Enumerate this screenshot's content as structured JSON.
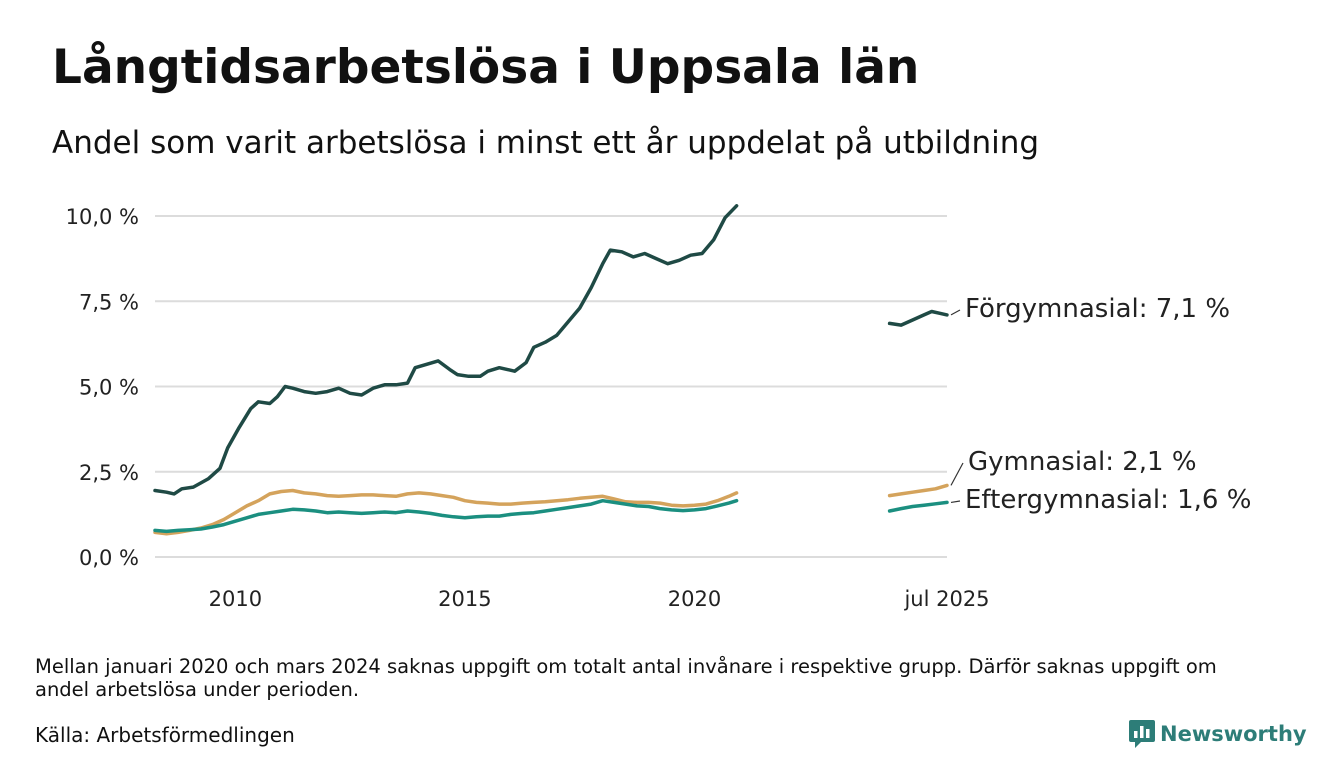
{
  "header": {
    "title": "Långtidsarbetslösa i Uppsala län",
    "subtitle": "Andel som varit arbetslösa i minst ett år uppdelat på utbildning"
  },
  "footer": {
    "note": "Mellan januari 2020 och mars 2024 saknas uppgift om totalt antal invånare i respektive grupp. Därför saknas uppgift om andel arbetslösa under perioden.",
    "source": "Källa: Arbetsförmedlingen",
    "brand": "Newsworthy",
    "brand_icon": "newsworthy-logo-icon"
  },
  "chart_data": {
    "type": "line",
    "title": "",
    "xlabel": "",
    "ylabel": "",
    "xlim": [
      "2008-04",
      "2025-07"
    ],
    "ylim": [
      0,
      10
    ],
    "y_ticks": [
      0,
      2.5,
      5,
      7.5,
      10
    ],
    "y_tick_labels": [
      "0,0 %",
      "2,5 %",
      "5,0 %",
      "7,5 %",
      "10,0 %"
    ],
    "x_ticks": [
      "2010-01",
      "2015-01",
      "2020-01",
      "2025-07"
    ],
    "x_tick_labels": [
      "2010",
      "2015",
      "2020",
      "jul 2025"
    ],
    "grid": "horizontal",
    "legend": "direct labels at right end of lines",
    "series": [
      {
        "name": "Förgymnasial",
        "end_label": "Förgymnasial: 7,1 %",
        "color": "#1f4a45",
        "points": [
          [
            "2008-04",
            1.95
          ],
          [
            "2008-07",
            1.9
          ],
          [
            "2008-09",
            1.85
          ],
          [
            "2008-11",
            2.0
          ],
          [
            "2009-02",
            2.05
          ],
          [
            "2009-06",
            2.3
          ],
          [
            "2009-09",
            2.6
          ],
          [
            "2009-11",
            3.2
          ],
          [
            "2010-02",
            3.8
          ],
          [
            "2010-05",
            4.35
          ],
          [
            "2010-07",
            4.55
          ],
          [
            "2010-10",
            4.5
          ],
          [
            "2010-12",
            4.7
          ],
          [
            "2011-02",
            5.0
          ],
          [
            "2011-04",
            4.95
          ],
          [
            "2011-07",
            4.85
          ],
          [
            "2011-10",
            4.8
          ],
          [
            "2012-01",
            4.85
          ],
          [
            "2012-04",
            4.95
          ],
          [
            "2012-07",
            4.8
          ],
          [
            "2012-10",
            4.75
          ],
          [
            "2013-01",
            4.95
          ],
          [
            "2013-04",
            5.05
          ],
          [
            "2013-07",
            5.05
          ],
          [
            "2013-10",
            5.1
          ],
          [
            "2013-12",
            5.55
          ],
          [
            "2014-03",
            5.65
          ],
          [
            "2014-06",
            5.75
          ],
          [
            "2014-09",
            5.5
          ],
          [
            "2014-11",
            5.35
          ],
          [
            "2015-02",
            5.3
          ],
          [
            "2015-05",
            5.3
          ],
          [
            "2015-07",
            5.45
          ],
          [
            "2015-10",
            5.55
          ],
          [
            "2015-12",
            5.5
          ],
          [
            "2016-02",
            5.45
          ],
          [
            "2016-05",
            5.7
          ],
          [
            "2016-07",
            6.15
          ],
          [
            "2016-10",
            6.3
          ],
          [
            "2017-01",
            6.5
          ],
          [
            "2017-04",
            6.9
          ],
          [
            "2017-07",
            7.3
          ],
          [
            "2017-10",
            7.9
          ],
          [
            "2018-01",
            8.6
          ],
          [
            "2018-03",
            9.0
          ],
          [
            "2018-06",
            8.95
          ],
          [
            "2018-09",
            8.8
          ],
          [
            "2018-12",
            8.9
          ],
          [
            "2019-03",
            8.75
          ],
          [
            "2019-06",
            8.6
          ],
          [
            "2019-09",
            8.7
          ],
          [
            "2019-12",
            8.85
          ],
          [
            "2020-03",
            8.9
          ],
          [
            "2020-06",
            9.3
          ],
          [
            "2020-09",
            9.95
          ],
          [
            "2020-12",
            10.3
          ],
          null,
          [
            "2024-04",
            6.85
          ],
          [
            "2024-07",
            6.8
          ],
          [
            "2024-10",
            6.95
          ],
          [
            "2025-01",
            7.1
          ],
          [
            "2025-03",
            7.2
          ],
          [
            "2025-05",
            7.15
          ],
          [
            "2025-07",
            7.1
          ]
        ]
      },
      {
        "name": "Gymnasial",
        "end_label": "Gymnasial: 2,1 %",
        "color": "#d4a35c",
        "points": [
          [
            "2008-04",
            0.72
          ],
          [
            "2008-07",
            0.68
          ],
          [
            "2008-10",
            0.72
          ],
          [
            "2009-01",
            0.78
          ],
          [
            "2009-04",
            0.85
          ],
          [
            "2009-07",
            0.95
          ],
          [
            "2009-10",
            1.1
          ],
          [
            "2010-01",
            1.3
          ],
          [
            "2010-04",
            1.5
          ],
          [
            "2010-07",
            1.65
          ],
          [
            "2010-10",
            1.85
          ],
          [
            "2011-01",
            1.92
          ],
          [
            "2011-04",
            1.95
          ],
          [
            "2011-07",
            1.88
          ],
          [
            "2011-10",
            1.85
          ],
          [
            "2012-01",
            1.8
          ],
          [
            "2012-04",
            1.78
          ],
          [
            "2012-07",
            1.8
          ],
          [
            "2012-10",
            1.82
          ],
          [
            "2013-01",
            1.82
          ],
          [
            "2013-04",
            1.8
          ],
          [
            "2013-07",
            1.78
          ],
          [
            "2013-10",
            1.85
          ],
          [
            "2014-01",
            1.88
          ],
          [
            "2014-04",
            1.85
          ],
          [
            "2014-07",
            1.8
          ],
          [
            "2014-10",
            1.75
          ],
          [
            "2015-01",
            1.65
          ],
          [
            "2015-04",
            1.6
          ],
          [
            "2015-07",
            1.58
          ],
          [
            "2015-10",
            1.55
          ],
          [
            "2016-01",
            1.55
          ],
          [
            "2016-04",
            1.58
          ],
          [
            "2016-07",
            1.6
          ],
          [
            "2016-10",
            1.62
          ],
          [
            "2017-01",
            1.65
          ],
          [
            "2017-04",
            1.68
          ],
          [
            "2017-07",
            1.72
          ],
          [
            "2017-10",
            1.75
          ],
          [
            "2018-01",
            1.78
          ],
          [
            "2018-04",
            1.7
          ],
          [
            "2018-07",
            1.62
          ],
          [
            "2018-10",
            1.6
          ],
          [
            "2019-01",
            1.6
          ],
          [
            "2019-04",
            1.58
          ],
          [
            "2019-07",
            1.52
          ],
          [
            "2019-10",
            1.5
          ],
          [
            "2020-01",
            1.52
          ],
          [
            "2020-04",
            1.55
          ],
          [
            "2020-07",
            1.65
          ],
          [
            "2020-10",
            1.78
          ],
          [
            "2020-12",
            1.88
          ],
          null,
          [
            "2024-04",
            1.8
          ],
          [
            "2024-07",
            1.85
          ],
          [
            "2024-10",
            1.9
          ],
          [
            "2025-01",
            1.95
          ],
          [
            "2025-04",
            2.0
          ],
          [
            "2025-07",
            2.1
          ]
        ]
      },
      {
        "name": "Eftergymnasial",
        "end_label": "Eftergymnasial: 1,6 %",
        "color": "#1b8f80",
        "points": [
          [
            "2008-04",
            0.78
          ],
          [
            "2008-07",
            0.75
          ],
          [
            "2008-10",
            0.78
          ],
          [
            "2009-01",
            0.8
          ],
          [
            "2009-04",
            0.82
          ],
          [
            "2009-07",
            0.88
          ],
          [
            "2009-10",
            0.95
          ],
          [
            "2010-01",
            1.05
          ],
          [
            "2010-04",
            1.15
          ],
          [
            "2010-07",
            1.25
          ],
          [
            "2010-10",
            1.3
          ],
          [
            "2011-01",
            1.35
          ],
          [
            "2011-04",
            1.4
          ],
          [
            "2011-07",
            1.38
          ],
          [
            "2011-10",
            1.35
          ],
          [
            "2012-01",
            1.3
          ],
          [
            "2012-04",
            1.32
          ],
          [
            "2012-07",
            1.3
          ],
          [
            "2012-10",
            1.28
          ],
          [
            "2013-01",
            1.3
          ],
          [
            "2013-04",
            1.32
          ],
          [
            "2013-07",
            1.3
          ],
          [
            "2013-10",
            1.35
          ],
          [
            "2014-01",
            1.32
          ],
          [
            "2014-04",
            1.28
          ],
          [
            "2014-07",
            1.22
          ],
          [
            "2014-10",
            1.18
          ],
          [
            "2015-01",
            1.15
          ],
          [
            "2015-04",
            1.18
          ],
          [
            "2015-07",
            1.2
          ],
          [
            "2015-10",
            1.2
          ],
          [
            "2016-01",
            1.25
          ],
          [
            "2016-04",
            1.28
          ],
          [
            "2016-07",
            1.3
          ],
          [
            "2016-10",
            1.35
          ],
          [
            "2017-01",
            1.4
          ],
          [
            "2017-04",
            1.45
          ],
          [
            "2017-07",
            1.5
          ],
          [
            "2017-10",
            1.55
          ],
          [
            "2018-01",
            1.65
          ],
          [
            "2018-04",
            1.6
          ],
          [
            "2018-07",
            1.55
          ],
          [
            "2018-10",
            1.5
          ],
          [
            "2019-01",
            1.48
          ],
          [
            "2019-04",
            1.42
          ],
          [
            "2019-07",
            1.38
          ],
          [
            "2019-10",
            1.36
          ],
          [
            "2020-01",
            1.38
          ],
          [
            "2020-04",
            1.42
          ],
          [
            "2020-07",
            1.5
          ],
          [
            "2020-10",
            1.58
          ],
          [
            "2020-12",
            1.65
          ],
          null,
          [
            "2024-04",
            1.35
          ],
          [
            "2024-07",
            1.42
          ],
          [
            "2024-10",
            1.48
          ],
          [
            "2025-01",
            1.52
          ],
          [
            "2025-04",
            1.56
          ],
          [
            "2025-07",
            1.6
          ]
        ]
      }
    ]
  }
}
